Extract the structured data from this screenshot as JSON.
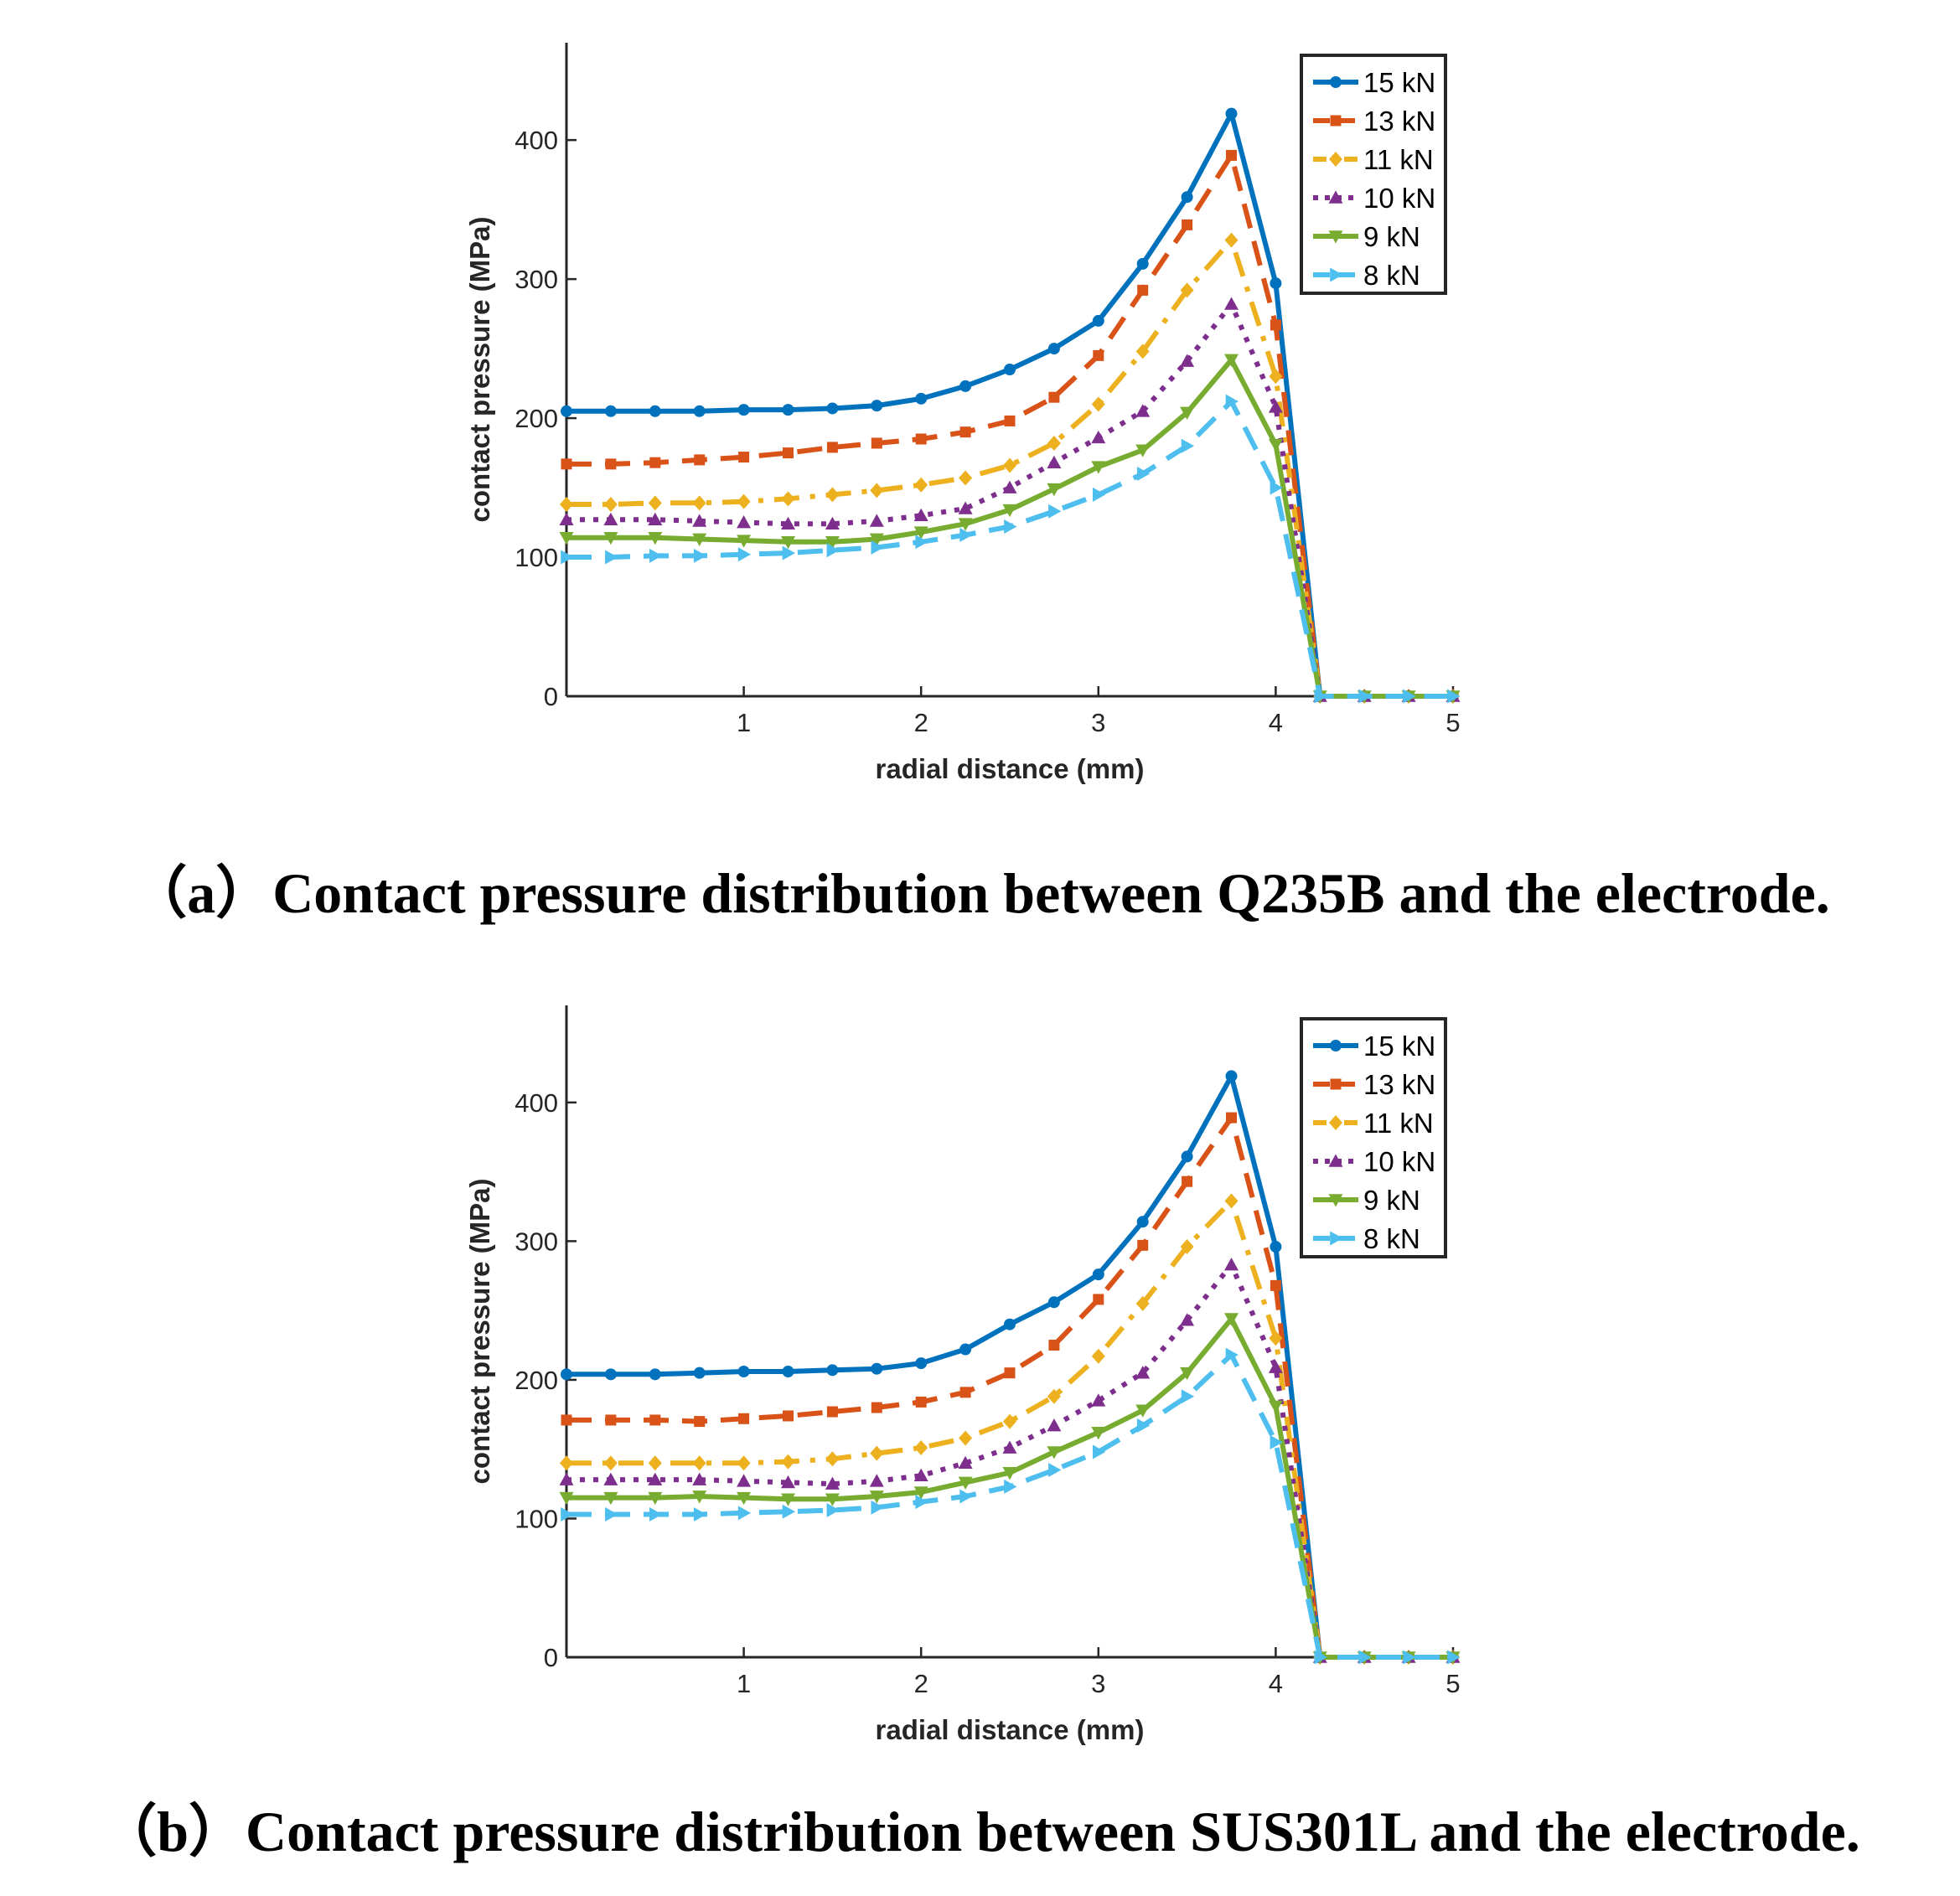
{
  "figure": {
    "panel_a": {
      "caption": "（a）Contact pressure distribution between Q235B and the electrode."
    },
    "panel_b": {
      "caption": "（b）Contact pressure distribution between SUS301L and the electrode."
    }
  },
  "chart_data": [
    {
      "type": "line",
      "title": "",
      "xlabel": "radial distance (mm)",
      "ylabel": "contact pressure (MPa)",
      "xlim": [
        0,
        5
      ],
      "ylim": [
        0,
        470
      ],
      "xticks": [
        1,
        2,
        3,
        4,
        5
      ],
      "yticks": [
        0,
        100,
        200,
        300,
        400
      ],
      "grid": false,
      "legend_position": "top-right",
      "x": [
        0,
        0.25,
        0.5,
        0.75,
        1.0,
        1.25,
        1.5,
        1.75,
        2.0,
        2.25,
        2.5,
        2.75,
        3.0,
        3.25,
        3.5,
        3.75,
        4.0,
        4.25,
        4.5,
        4.75,
        5.0
      ],
      "series": [
        {
          "name": "15 kN",
          "color": "#0072BD",
          "style": "solid",
          "marker": "circle",
          "values": [
            205,
            205,
            205,
            205,
            206,
            206,
            207,
            209,
            214,
            223,
            235,
            250,
            270,
            311,
            359,
            419,
            297,
            0,
            0,
            0,
            0
          ]
        },
        {
          "name": "13 kN",
          "color": "#D95319",
          "style": "dashed",
          "marker": "square",
          "values": [
            167,
            167,
            168,
            170,
            172,
            175,
            179,
            182,
            185,
            190,
            198,
            215,
            245,
            292,
            339,
            389,
            267,
            0,
            0,
            0,
            0
          ]
        },
        {
          "name": "11 kN",
          "color": "#EDB120",
          "style": "dashdot",
          "marker": "diamond",
          "values": [
            138,
            138,
            139,
            139,
            140,
            142,
            145,
            148,
            152,
            157,
            166,
            182,
            210,
            248,
            292,
            328,
            230,
            0,
            0,
            0,
            0
          ]
        },
        {
          "name": "10 kN",
          "color": "#7E2F8E",
          "style": "dotted",
          "marker": "triangle-up",
          "values": [
            127,
            127,
            127,
            126,
            125,
            124,
            124,
            126,
            130,
            135,
            150,
            168,
            186,
            205,
            241,
            282,
            208,
            0,
            0,
            0,
            0
          ]
        },
        {
          "name": "9 kN",
          "color": "#77AC30",
          "style": "solid",
          "marker": "triangle-down",
          "values": [
            114,
            114,
            114,
            113,
            112,
            111,
            111,
            113,
            118,
            124,
            134,
            149,
            165,
            177,
            204,
            242,
            181,
            0,
            0,
            0,
            0
          ]
        },
        {
          "name": "8 kN",
          "color": "#4DBEEE",
          "style": "dashed",
          "marker": "triangle-right",
          "values": [
            100,
            100,
            101,
            101,
            102,
            103,
            105,
            107,
            111,
            116,
            122,
            133,
            145,
            160,
            180,
            212,
            150,
            0,
            0,
            0,
            0
          ]
        }
      ]
    },
    {
      "type": "line",
      "title": "",
      "xlabel": "radial distance (mm)",
      "ylabel": "contact pressure (MPa)",
      "xlim": [
        0,
        5
      ],
      "ylim": [
        0,
        470
      ],
      "xticks": [
        1,
        2,
        3,
        4,
        5
      ],
      "yticks": [
        0,
        100,
        200,
        300,
        400
      ],
      "grid": false,
      "legend_position": "top-right",
      "x": [
        0,
        0.25,
        0.5,
        0.75,
        1.0,
        1.25,
        1.5,
        1.75,
        2.0,
        2.25,
        2.5,
        2.75,
        3.0,
        3.25,
        3.5,
        3.75,
        4.0,
        4.25,
        4.5,
        4.75,
        5.0
      ],
      "series": [
        {
          "name": "15 kN",
          "color": "#0072BD",
          "style": "solid",
          "marker": "circle",
          "values": [
            204,
            204,
            204,
            205,
            206,
            206,
            207,
            208,
            212,
            222,
            240,
            256,
            276,
            314,
            361,
            419,
            296,
            0,
            0,
            0,
            0
          ]
        },
        {
          "name": "13 kN",
          "color": "#D95319",
          "style": "dashed",
          "marker": "square",
          "values": [
            171,
            171,
            171,
            170,
            172,
            174,
            177,
            180,
            184,
            191,
            205,
            225,
            258,
            297,
            343,
            389,
            268,
            0,
            0,
            0,
            0
          ]
        },
        {
          "name": "11 kN",
          "color": "#EDB120",
          "style": "dashdot",
          "marker": "diamond",
          "values": [
            140,
            140,
            140,
            140,
            140,
            141,
            143,
            147,
            151,
            158,
            170,
            188,
            217,
            255,
            296,
            329,
            230,
            0,
            0,
            0,
            0
          ]
        },
        {
          "name": "10 kN",
          "color": "#7E2F8E",
          "style": "dotted",
          "marker": "triangle-up",
          "values": [
            128,
            128,
            128,
            128,
            127,
            126,
            125,
            127,
            131,
            140,
            151,
            167,
            185,
            205,
            243,
            283,
            209,
            0,
            0,
            0,
            0
          ]
        },
        {
          "name": "9 kN",
          "color": "#77AC30",
          "style": "solid",
          "marker": "triangle-down",
          "values": [
            115,
            115,
            115,
            116,
            115,
            114,
            114,
            116,
            119,
            126,
            133,
            148,
            162,
            178,
            205,
            244,
            181,
            0,
            0,
            0,
            0
          ]
        },
        {
          "name": "8 kN",
          "color": "#4DBEEE",
          "style": "dashed",
          "marker": "triangle-right",
          "values": [
            103,
            103,
            103,
            103,
            104,
            105,
            106,
            108,
            112,
            116,
            123,
            135,
            148,
            167,
            188,
            218,
            155,
            0,
            0,
            0,
            0
          ]
        }
      ]
    }
  ]
}
